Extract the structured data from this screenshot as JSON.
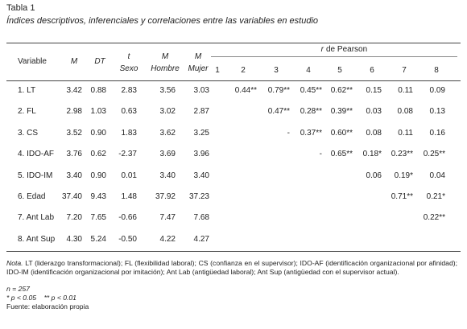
{
  "title": "Tabla 1",
  "subtitle": "Índices descriptivos, inferenciales y correlaciones entre las variables en estudio",
  "table": {
    "columns": [
      {
        "label": "Variable"
      },
      {
        "label": "M"
      },
      {
        "label": "DT"
      },
      {
        "line1": "t",
        "line2": "Sexo"
      },
      {
        "line1": "M",
        "line2": "Hombre"
      },
      {
        "line1": "M",
        "line2": "Mujer"
      }
    ],
    "group_label": {
      "symbol": "r",
      "text": "de Pearson"
    },
    "group_columns": [
      "1",
      "2",
      "3",
      "4",
      "5",
      "6",
      "7",
      "8"
    ],
    "rows": [
      {
        "variable": "1. LT",
        "cells": [
          "3.42",
          "0.88",
          "2.83",
          "3.56",
          "3.03",
          null,
          "0.44**",
          "0.79**",
          "0.45**",
          "0.62**",
          "0.15",
          "0.11",
          "0.09"
        ]
      },
      {
        "variable": "2. FL",
        "cells": [
          "2.98",
          "1.03",
          "0.63",
          "3.02",
          "2.87",
          null,
          null,
          "0.47**",
          "0.28**",
          "0.39**",
          "0.03",
          "0.08",
          "0.13"
        ]
      },
      {
        "variable": "3. CS",
        "cells": [
          "3.52",
          "0.90",
          "1.83",
          "3.62",
          "3.25",
          null,
          null,
          "-",
          "0.37**",
          "0.60**",
          "0.08",
          "0.11",
          "0.16"
        ]
      },
      {
        "variable": "4. IDO-AF",
        "cells": [
          "3.76",
          "0.62",
          "-2.37",
          "3.69",
          "3.96",
          null,
          null,
          null,
          "-",
          "0.65**",
          "0.18*",
          "0.23**",
          "0.25**"
        ]
      },
      {
        "variable": "5. IDO-IM",
        "cells": [
          "3.40",
          "0.90",
          "0.01",
          "3.40",
          "3.40",
          null,
          null,
          null,
          null,
          null,
          "0.06",
          "0.19*",
          "0.04"
        ]
      },
      {
        "variable": "6. Edad",
        "cells": [
          "37.40",
          "9.43",
          "1.48",
          "37.92",
          "37.23",
          null,
          null,
          null,
          null,
          null,
          null,
          "0.71**",
          "0.21*"
        ]
      },
      {
        "variable": "7. Ant Lab",
        "cells": [
          "7.20",
          "7.65",
          "-0.66",
          "7.47",
          "7.68",
          null,
          null,
          null,
          null,
          null,
          null,
          null,
          "0.22**"
        ]
      },
      {
        "variable": "8. Ant Sup",
        "cells": [
          "4.30",
          "5.24",
          "-0.50",
          "4.22",
          "4.27",
          null,
          null,
          null,
          null,
          null,
          null,
          null,
          null
        ]
      }
    ]
  },
  "notes": {
    "label": "Nota.",
    "text": "LT (liderazgo transformacional); FL (flexibilidad laboral); CS (confianza en el supervisor); IDO-AF (identificación organizacional por afinidad); IDO-IM (identificación organizacional por imitación); Ant Lab (antigüedad laboral); Ant Sup (antigüedad con el supervisor actual).",
    "n": "n = 257",
    "significance": "* p < 0.05    ** p < 0.01",
    "source": "Fuente: elaboración propia"
  }
}
